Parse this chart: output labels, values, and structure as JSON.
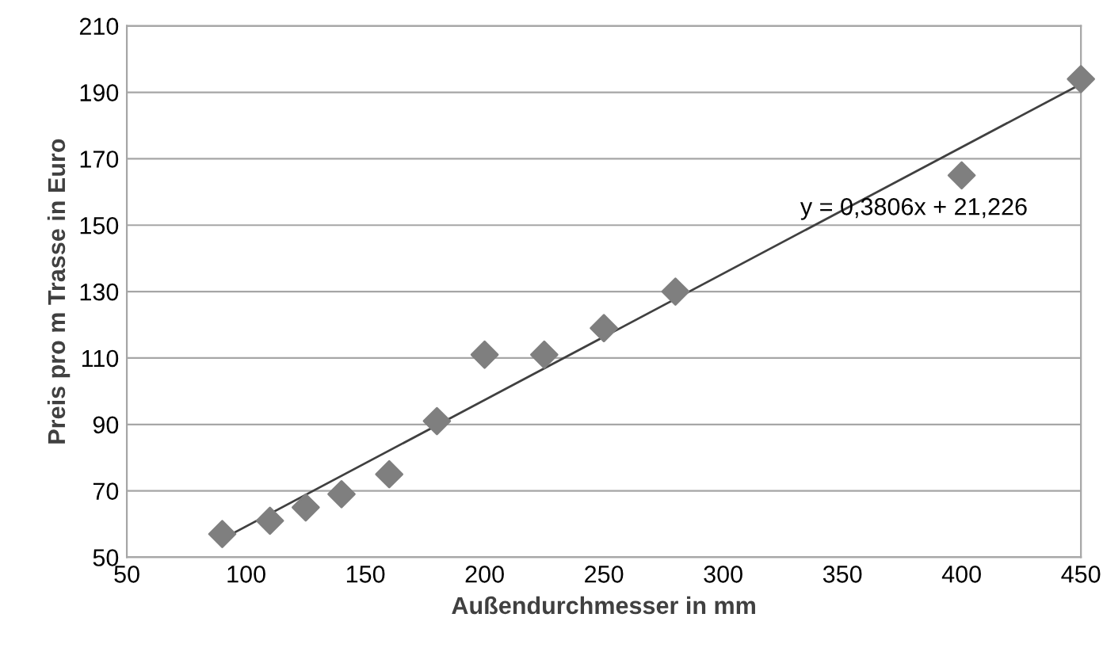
{
  "chart_data": {
    "type": "scatter",
    "xlabel": "Außendurchmesser in mm",
    "ylabel": "Preis pro m Trasse in Euro",
    "xlim": [
      50,
      450
    ],
    "xticks": [
      50,
      100,
      150,
      200,
      250,
      300,
      350,
      400,
      450
    ],
    "ylim": [
      50,
      210
    ],
    "yticks": [
      50,
      70,
      90,
      110,
      130,
      150,
      170,
      190,
      210
    ],
    "grid": "y",
    "legend": false,
    "series": [
      {
        "color": "#7f7f7f",
        "marker": "diamond",
        "x": [
          90,
          110,
          125,
          140,
          160,
          180,
          200,
          225,
          250,
          280,
          400,
          450
        ],
        "values": [
          57,
          61,
          65,
          69,
          75,
          91,
          111,
          111,
          119,
          130,
          165,
          194
        ]
      },
      {
        "type": "line",
        "color": "#404040",
        "marker": "none",
        "line_style": "solid",
        "x": [
          90,
          450
        ],
        "values": [
          55.5,
          192.5
        ]
      }
    ],
    "annotations": [
      "y = 0,3806x + 21,226"
    ]
  }
}
